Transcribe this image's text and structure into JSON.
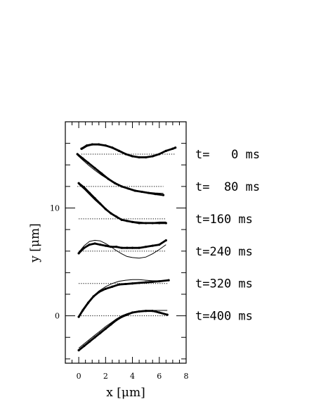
{
  "chart_data": {
    "type": "line",
    "title": "",
    "xlabel": "x [μm]",
    "ylabel": "y [μm]",
    "xlim": [
      -1,
      8
    ],
    "ylim": [
      -4.4,
      18
    ],
    "x_ticks": [
      0,
      2,
      4,
      6,
      8
    ],
    "y_ticks": [
      0,
      10
    ],
    "grid": false,
    "legend": "none",
    "colors": {
      "ink": "#000000"
    },
    "series": [
      {
        "label": "t=   0 ms",
        "baseline": 15,
        "x_range": [
          0.2,
          7.2
        ],
        "data": [
          [
            0.2,
            15.5
          ],
          [
            0.6,
            15.8
          ],
          [
            1.0,
            15.9
          ],
          [
            1.5,
            15.9
          ],
          [
            2.0,
            15.8
          ],
          [
            2.5,
            15.6
          ],
          [
            3.0,
            15.3
          ],
          [
            3.5,
            15.0
          ],
          [
            4.0,
            14.8
          ],
          [
            4.5,
            14.7
          ],
          [
            5.0,
            14.7
          ],
          [
            5.5,
            14.8
          ],
          [
            6.0,
            15.0
          ],
          [
            6.5,
            15.3
          ],
          [
            7.0,
            15.5
          ],
          [
            7.2,
            15.6
          ]
        ],
        "fit": [
          [
            0.2,
            15.4
          ],
          [
            0.6,
            15.7
          ],
          [
            1.0,
            15.85
          ],
          [
            1.5,
            15.85
          ],
          [
            2.0,
            15.75
          ],
          [
            2.5,
            15.55
          ],
          [
            3.0,
            15.3
          ],
          [
            3.5,
            15.05
          ],
          [
            4.0,
            14.85
          ],
          [
            4.5,
            14.75
          ],
          [
            5.0,
            14.75
          ],
          [
            5.5,
            14.85
          ],
          [
            6.0,
            15.05
          ],
          [
            6.5,
            15.25
          ],
          [
            7.0,
            15.5
          ],
          [
            7.2,
            15.55
          ]
        ]
      },
      {
        "label": "t=  80 ms",
        "baseline": 12,
        "x_range": [
          -0.1,
          6.3
        ],
        "data": [
          [
            -0.1,
            15.0
          ],
          [
            0.3,
            14.6
          ],
          [
            0.7,
            14.2
          ],
          [
            1.2,
            13.7
          ],
          [
            1.7,
            13.2
          ],
          [
            2.2,
            12.7
          ],
          [
            2.7,
            12.3
          ],
          [
            3.2,
            12.0
          ],
          [
            3.7,
            11.8
          ],
          [
            4.2,
            11.6
          ],
          [
            4.7,
            11.5
          ],
          [
            5.2,
            11.4
          ],
          [
            5.7,
            11.3
          ],
          [
            6.3,
            11.2
          ]
        ],
        "fit": [
          [
            -0.1,
            14.9
          ],
          [
            0.3,
            14.45
          ],
          [
            0.7,
            14.0
          ],
          [
            1.2,
            13.5
          ],
          [
            1.7,
            13.05
          ],
          [
            2.2,
            12.65
          ],
          [
            2.7,
            12.3
          ],
          [
            3.2,
            12.0
          ],
          [
            3.7,
            11.8
          ],
          [
            4.2,
            11.65
          ],
          [
            4.7,
            11.55
          ],
          [
            5.2,
            11.45
          ],
          [
            5.7,
            11.4
          ],
          [
            6.3,
            11.35
          ]
        ]
      },
      {
        "label": "t=160 ms",
        "baseline": 9,
        "x_range": [
          0.0,
          6.5
        ],
        "data": [
          [
            0.0,
            12.3
          ],
          [
            0.4,
            11.9
          ],
          [
            0.8,
            11.4
          ],
          [
            1.2,
            10.9
          ],
          [
            1.6,
            10.4
          ],
          [
            2.0,
            9.9
          ],
          [
            2.4,
            9.5
          ],
          [
            2.8,
            9.2
          ],
          [
            3.2,
            8.9
          ],
          [
            3.6,
            8.8
          ],
          [
            4.0,
            8.7
          ],
          [
            4.5,
            8.6
          ],
          [
            5.0,
            8.6
          ],
          [
            5.5,
            8.6
          ],
          [
            6.0,
            8.6
          ],
          [
            6.5,
            8.6
          ]
        ],
        "fit": [
          [
            0.0,
            12.2
          ],
          [
            0.4,
            11.75
          ],
          [
            0.8,
            11.25
          ],
          [
            1.2,
            10.75
          ],
          [
            1.6,
            10.3
          ],
          [
            2.0,
            9.85
          ],
          [
            2.4,
            9.45
          ],
          [
            2.8,
            9.15
          ],
          [
            3.2,
            8.9
          ],
          [
            3.6,
            8.8
          ],
          [
            4.0,
            8.75
          ],
          [
            4.5,
            8.7
          ],
          [
            5.0,
            8.65
          ],
          [
            5.5,
            8.65
          ],
          [
            6.0,
            8.7
          ],
          [
            6.5,
            8.7
          ]
        ]
      },
      {
        "label": "t=240 ms",
        "baseline": 6,
        "x_range": [
          0.0,
          6.5
        ],
        "data": [
          [
            0.0,
            5.8
          ],
          [
            0.4,
            6.3
          ],
          [
            0.8,
            6.6
          ],
          [
            1.2,
            6.7
          ],
          [
            1.6,
            6.6
          ],
          [
            2.0,
            6.5
          ],
          [
            2.4,
            6.4
          ],
          [
            2.8,
            6.4
          ],
          [
            3.2,
            6.3
          ],
          [
            3.6,
            6.3
          ],
          [
            4.0,
            6.3
          ],
          [
            4.5,
            6.3
          ],
          [
            5.0,
            6.4
          ],
          [
            5.5,
            6.5
          ],
          [
            6.0,
            6.6
          ],
          [
            6.5,
            7.0
          ]
        ],
        "fit": [
          [
            0.0,
            5.9
          ],
          [
            0.4,
            6.5
          ],
          [
            0.8,
            6.9
          ],
          [
            1.2,
            7.0
          ],
          [
            1.6,
            6.95
          ],
          [
            2.0,
            6.7
          ],
          [
            2.4,
            6.4
          ],
          [
            2.8,
            6.05
          ],
          [
            3.2,
            5.75
          ],
          [
            3.6,
            5.5
          ],
          [
            4.0,
            5.4
          ],
          [
            4.5,
            5.35
          ],
          [
            5.0,
            5.45
          ],
          [
            5.5,
            5.75
          ],
          [
            6.0,
            6.15
          ],
          [
            6.5,
            6.6
          ]
        ]
      },
      {
        "label": "t=320 ms",
        "baseline": 3,
        "x_range": [
          0.0,
          6.7
        ],
        "data": [
          [
            0.0,
            -0.1
          ],
          [
            0.3,
            0.5
          ],
          [
            0.7,
            1.2
          ],
          [
            1.1,
            1.8
          ],
          [
            1.5,
            2.2
          ],
          [
            2.0,
            2.5
          ],
          [
            2.5,
            2.7
          ],
          [
            3.0,
            2.9
          ],
          [
            3.5,
            2.95
          ],
          [
            4.0,
            3.0
          ],
          [
            4.5,
            3.05
          ],
          [
            5.0,
            3.1
          ],
          [
            5.5,
            3.15
          ],
          [
            6.0,
            3.2
          ],
          [
            6.7,
            3.3
          ]
        ],
        "fit": [
          [
            0.0,
            0.0
          ],
          [
            0.3,
            0.6
          ],
          [
            0.7,
            1.3
          ],
          [
            1.1,
            1.85
          ],
          [
            1.5,
            2.3
          ],
          [
            2.0,
            2.7
          ],
          [
            2.5,
            3.0
          ],
          [
            3.0,
            3.2
          ],
          [
            3.5,
            3.3
          ],
          [
            4.0,
            3.35
          ],
          [
            4.5,
            3.35
          ],
          [
            5.0,
            3.3
          ],
          [
            5.5,
            3.25
          ],
          [
            6.0,
            3.25
          ],
          [
            6.7,
            3.3
          ]
        ]
      },
      {
        "label": "t=400 ms",
        "baseline": 0,
        "x_range": [
          0.0,
          6.6
        ],
        "data": [
          [
            0.0,
            -3.2
          ],
          [
            0.4,
            -2.8
          ],
          [
            0.8,
            -2.4
          ],
          [
            1.2,
            -2.0
          ],
          [
            1.6,
            -1.6
          ],
          [
            2.0,
            -1.2
          ],
          [
            2.4,
            -0.8
          ],
          [
            2.8,
            -0.4
          ],
          [
            3.2,
            -0.1
          ],
          [
            3.6,
            0.1
          ],
          [
            4.0,
            0.3
          ],
          [
            4.5,
            0.4
          ],
          [
            5.0,
            0.45
          ],
          [
            5.5,
            0.45
          ],
          [
            6.0,
            0.3
          ],
          [
            6.6,
            0.1
          ]
        ],
        "fit": [
          [
            0.0,
            -3.0
          ],
          [
            0.4,
            -2.6
          ],
          [
            0.8,
            -2.2
          ],
          [
            1.2,
            -1.8
          ],
          [
            1.6,
            -1.4
          ],
          [
            2.0,
            -1.0
          ],
          [
            2.4,
            -0.65
          ],
          [
            2.8,
            -0.3
          ],
          [
            3.2,
            0.0
          ],
          [
            3.6,
            0.2
          ],
          [
            4.0,
            0.35
          ],
          [
            4.5,
            0.45
          ],
          [
            5.0,
            0.5
          ],
          [
            5.5,
            0.5
          ],
          [
            6.0,
            0.5
          ],
          [
            6.6,
            0.5
          ]
        ]
      }
    ]
  }
}
